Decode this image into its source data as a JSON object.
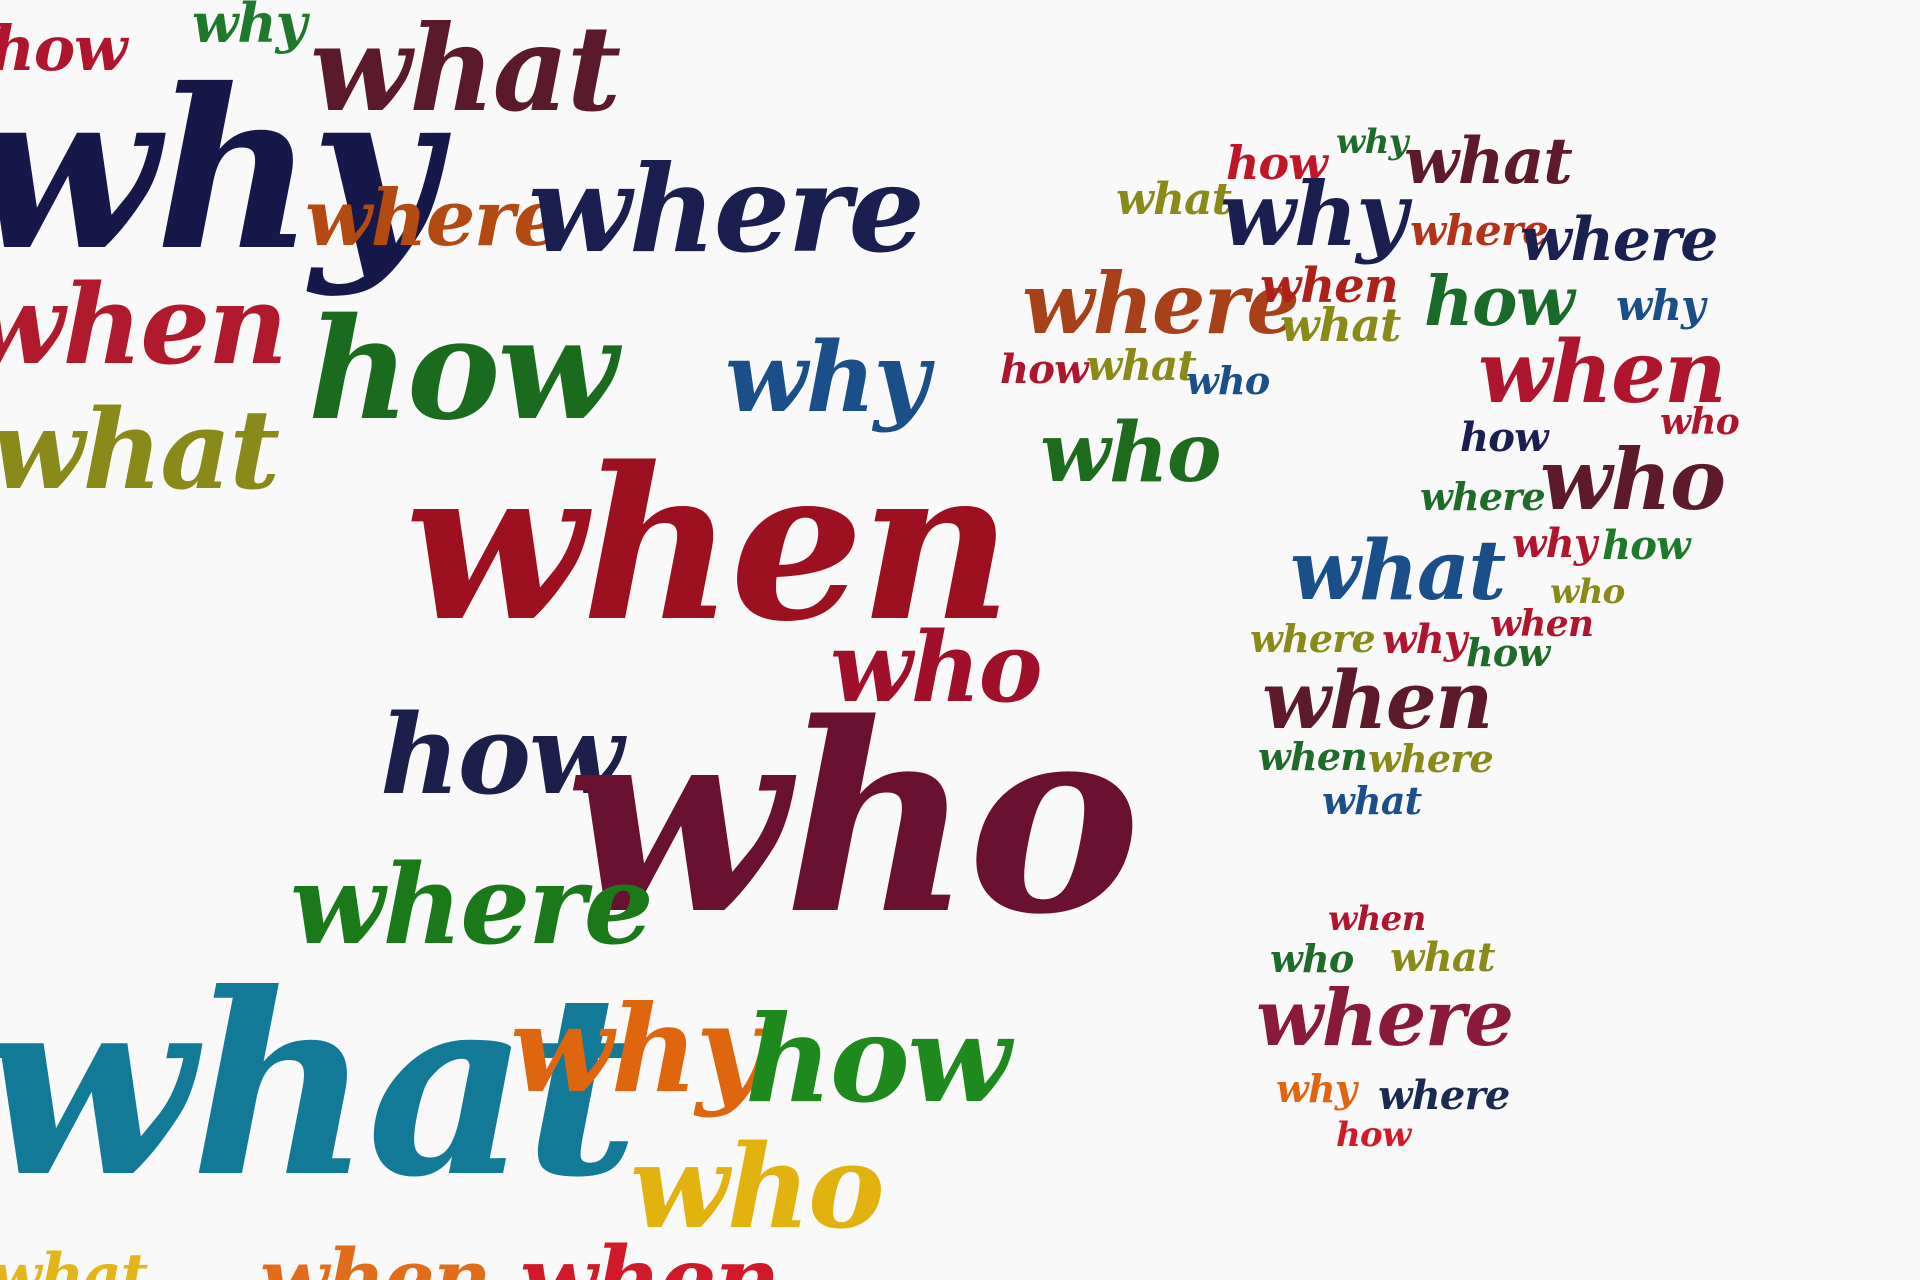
{
  "words": [
    {
      "text": "how",
      "color": "#b0152e"
    },
    {
      "text": "why",
      "color": "#1e7a2a"
    },
    {
      "text": "what",
      "color": "#5a1a2b"
    },
    {
      "text": "why",
      "color": "#151848"
    },
    {
      "text": "where",
      "color": "#b24a12"
    },
    {
      "text": "where",
      "color": "#1a1f4f"
    },
    {
      "text": "when",
      "color": "#b1192c"
    },
    {
      "text": "how",
      "color": "#1b6b1e"
    },
    {
      "text": "why",
      "color": "#1a4f8a"
    },
    {
      "text": "what",
      "color": "#8a8a1a"
    },
    {
      "text": "when",
      "color": "#9c1020"
    },
    {
      "text": "who",
      "color": "#a0102a"
    },
    {
      "text": "how",
      "color": "#1b1f4a"
    },
    {
      "text": "who",
      "color": "#6a1030"
    },
    {
      "text": "where",
      "color": "#1a7a1a"
    },
    {
      "text": "what",
      "color": "#127a96"
    },
    {
      "text": "why",
      "color": "#e0650f"
    },
    {
      "text": "how",
      "color": "#1e8a1e"
    },
    {
      "text": "who",
      "color": "#e2b20f"
    },
    {
      "text": "when",
      "color": "#d0102a"
    },
    {
      "text": "how",
      "color": "#c0162a"
    },
    {
      "text": "why",
      "color": "#1e6b2a"
    },
    {
      "text": "what",
      "color": "#5c1a2a"
    },
    {
      "text": "what",
      "color": "#8a8a1a"
    },
    {
      "text": "why",
      "color": "#1a1f50"
    },
    {
      "text": "where",
      "color": "#b3331a"
    },
    {
      "text": "where",
      "color": "#1a2050"
    },
    {
      "text": "where",
      "color": "#a8401a"
    },
    {
      "text": "when",
      "color": "#b0201a"
    },
    {
      "text": "what",
      "color": "#8a8a1a"
    },
    {
      "text": "how",
      "color": "#1a6b2a"
    },
    {
      "text": "why",
      "color": "#1a4f8a"
    },
    {
      "text": "how",
      "color": "#b0152e"
    },
    {
      "text": "what",
      "color": "#8a8a1a"
    },
    {
      "text": "who",
      "color": "#1a4f8a"
    },
    {
      "text": "when",
      "color": "#b0152e"
    },
    {
      "text": "who",
      "color": "#1e6b1e"
    },
    {
      "text": "how",
      "color": "#1a1f50"
    },
    {
      "text": "who",
      "color": "#b0152e"
    },
    {
      "text": "who",
      "color": "#5c1a2a"
    },
    {
      "text": "where",
      "color": "#1e6b2a"
    },
    {
      "text": "what",
      "color": "#1a4f8a"
    },
    {
      "text": "why",
      "color": "#b0152e"
    },
    {
      "text": "how",
      "color": "#1e7a2a"
    },
    {
      "text": "who",
      "color": "#8a8a1a"
    },
    {
      "text": "where",
      "color": "#8a8a1a"
    },
    {
      "text": "why",
      "color": "#b0152e"
    },
    {
      "text": "when",
      "color": "#b0152e"
    },
    {
      "text": "how",
      "color": "#1e6b2a"
    },
    {
      "text": "when",
      "color": "#5c1a2a"
    },
    {
      "text": "when",
      "color": "#1e6b2a"
    },
    {
      "text": "where",
      "color": "#8a8a1a"
    },
    {
      "text": "what",
      "color": "#1a4f8a"
    },
    {
      "text": "when",
      "color": "#b0152e"
    },
    {
      "text": "who",
      "color": "#1e6b2a"
    },
    {
      "text": "what",
      "color": "#8a8a1a"
    },
    {
      "text": "where",
      "color": "#8a1a3a"
    },
    {
      "text": "why",
      "color": "#e0650f"
    },
    {
      "text": "where",
      "color": "#1a2a50"
    },
    {
      "text": "how",
      "color": "#d01a2a"
    },
    {
      "text": "when",
      "color": "#b0152e"
    },
    {
      "text": "what",
      "color": "#8a8a1a"
    }
  ]
}
